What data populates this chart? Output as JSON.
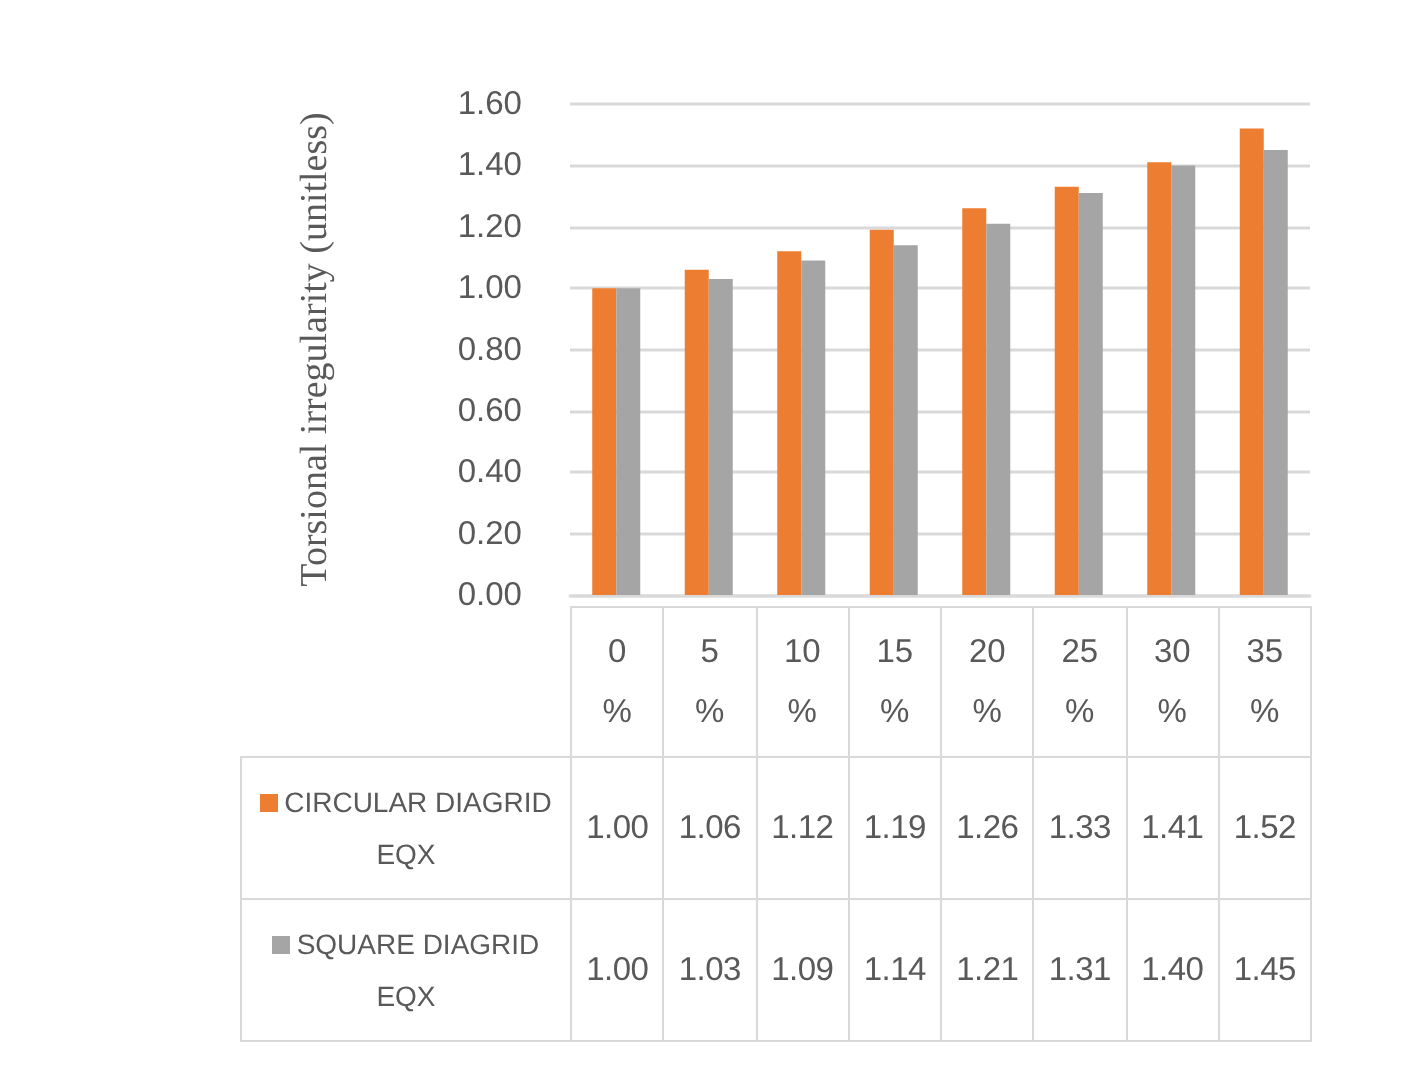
{
  "chart_data": {
    "type": "bar",
    "ylabel": "Torsional irregularity (unitless)",
    "categories": [
      "0 %",
      "5 %",
      "10 %",
      "15 %",
      "20 %",
      "25 %",
      "30 %",
      "35 %"
    ],
    "series": [
      {
        "name": "CIRCULAR DIAGRID EQX",
        "color": "#ed7d31",
        "values": [
          1.0,
          1.06,
          1.12,
          1.19,
          1.26,
          1.33,
          1.41,
          1.52
        ],
        "value_labels": [
          "1.00",
          "1.06",
          "1.12",
          "1.19",
          "1.26",
          "1.33",
          "1.41",
          "1.52"
        ]
      },
      {
        "name": "SQUARE DIAGRID EQX",
        "color": "#a5a5a5",
        "values": [
          1.0,
          1.03,
          1.09,
          1.14,
          1.21,
          1.31,
          1.4,
          1.45
        ],
        "value_labels": [
          "1.00",
          "1.03",
          "1.09",
          "1.14",
          "1.21",
          "1.31",
          "1.40",
          "1.45"
        ]
      }
    ],
    "ylim": [
      0,
      1.6
    ],
    "yticks": [
      {
        "value": 0,
        "label": "0.00"
      },
      {
        "value": 0.2,
        "label": "0.20"
      },
      {
        "value": 0.4,
        "label": "0.40"
      },
      {
        "value": 0.6,
        "label": "0.60"
      },
      {
        "value": 0.8,
        "label": "0.80"
      },
      {
        "value": 1.0,
        "label": "1.00"
      },
      {
        "value": 1.2,
        "label": "1.20"
      },
      {
        "value": 1.4,
        "label": "1.40"
      },
      {
        "value": 1.6,
        "label": "1.60"
      }
    ],
    "grid": "y",
    "legend": "bottom left"
  }
}
